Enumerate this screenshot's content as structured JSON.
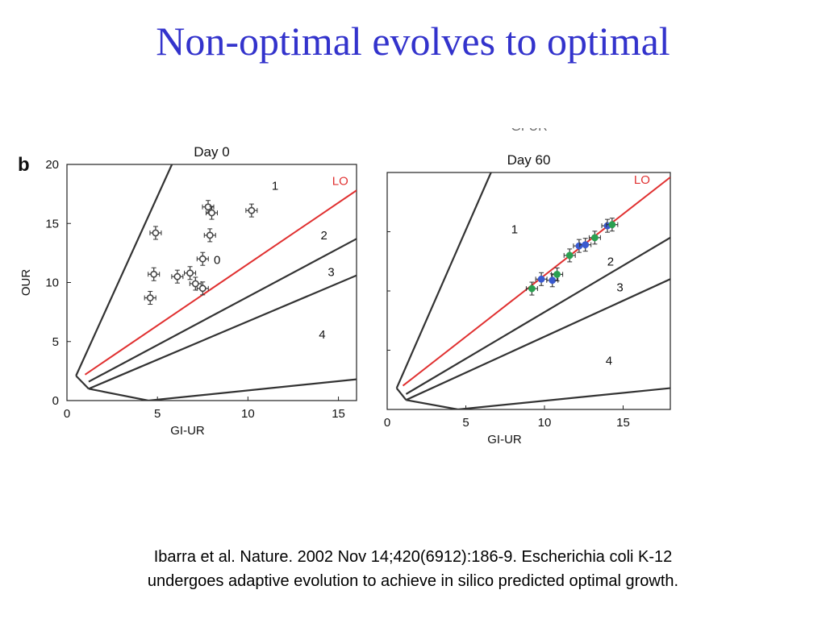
{
  "slide": {
    "title": "Non-optimal evolves to optimal",
    "citation_line1": "Ibarra et al.  Nature. 2002 Nov 14;420(6912):186-9. Escherichia coli K-12",
    "citation_line2": "undergoes adaptive evolution to achieve in silico predicted optimal growth."
  },
  "figure": {
    "panel_letter": "b",
    "clipped_header": "GI-UR"
  },
  "colors": {
    "title": "#3333cc",
    "lo_line": "#e03030",
    "boundary_lines": "#333333",
    "points_day0": "#444444",
    "points_day60_blue": "#3a5ad0",
    "points_day60_green": "#2aa050"
  },
  "chart_data": [
    {
      "type": "scatter",
      "title": "Day 0",
      "xlabel": "GI-UR",
      "ylabel": "OUR",
      "xlim": [
        0,
        16
      ],
      "ylim": [
        0,
        20
      ],
      "xticks": [
        0,
        5,
        10,
        15
      ],
      "yticks": [
        0,
        5,
        10,
        15,
        20
      ],
      "grid": false,
      "points": [
        {
          "x": 4.6,
          "y": 8.7
        },
        {
          "x": 4.8,
          "y": 10.7
        },
        {
          "x": 4.9,
          "y": 14.2
        },
        {
          "x": 6.1,
          "y": 10.5
        },
        {
          "x": 6.8,
          "y": 10.8
        },
        {
          "x": 7.1,
          "y": 9.9
        },
        {
          "x": 7.5,
          "y": 9.5
        },
        {
          "x": 7.5,
          "y": 12.0
        },
        {
          "x": 7.9,
          "y": 14.0
        },
        {
          "x": 7.8,
          "y": 16.4
        },
        {
          "x": 8.0,
          "y": 15.9
        },
        {
          "x": 10.2,
          "y": 16.1
        }
      ],
      "lines": [
        {
          "name": "LO",
          "points": [
            [
              1.0,
              2.2
            ],
            [
              16.0,
              17.8
            ]
          ]
        },
        {
          "points": [
            [
              1.2,
              1.6
            ],
            [
              16.0,
              13.7
            ]
          ]
        },
        {
          "points": [
            [
              1.2,
              1.0
            ],
            [
              16.0,
              10.6
            ]
          ]
        },
        {
          "points": [
            [
              4.5,
              0.0
            ],
            [
              16.0,
              1.8
            ]
          ]
        },
        {
          "points": [
            [
              0.5,
              2.1
            ],
            [
              5.8,
              20.0
            ]
          ]
        },
        {
          "points": [
            [
              0.5,
              2.1
            ],
            [
              1.2,
              1.0
            ]
          ]
        },
        {
          "points": [
            [
              1.2,
              1.0
            ],
            [
              4.5,
              0.0
            ]
          ]
        }
      ],
      "region_labels": [
        {
          "text": "1",
          "x": 11.5,
          "y": 18.2
        },
        {
          "text": "2",
          "x": 14.2,
          "y": 14.0
        },
        {
          "text": "3",
          "x": 14.6,
          "y": 10.9
        },
        {
          "text": "4",
          "x": 14.1,
          "y": 5.6
        },
        {
          "text": "0",
          "x": 8.3,
          "y": 11.9
        }
      ],
      "annotations": [
        {
          "text": "LO",
          "x": 15.1,
          "y": 18.6
        }
      ]
    },
    {
      "type": "scatter",
      "title": "Day 60",
      "xlabel": "GI-UR",
      "ylabel": "",
      "xlim": [
        0,
        18
      ],
      "ylim": [
        0,
        20
      ],
      "xticks": [
        0,
        5,
        10,
        15
      ],
      "yticks": [],
      "grid": false,
      "points": [
        {
          "x": 9.2,
          "y": 10.2,
          "color": "green"
        },
        {
          "x": 9.8,
          "y": 11.0,
          "color": "blue"
        },
        {
          "x": 10.5,
          "y": 10.9,
          "color": "blue"
        },
        {
          "x": 10.8,
          "y": 11.4,
          "color": "green"
        },
        {
          "x": 11.6,
          "y": 13.0,
          "color": "green"
        },
        {
          "x": 12.2,
          "y": 13.8,
          "color": "blue"
        },
        {
          "x": 12.6,
          "y": 13.9,
          "color": "blue"
        },
        {
          "x": 13.2,
          "y": 14.5,
          "color": "green"
        },
        {
          "x": 14.0,
          "y": 15.5,
          "color": "blue"
        },
        {
          "x": 14.3,
          "y": 15.6,
          "color": "green"
        }
      ],
      "lines": [
        {
          "name": "LO",
          "points": [
            [
              1.0,
              2.0
            ],
            [
              18.0,
              19.6
            ]
          ]
        },
        {
          "points": [
            [
              1.2,
              1.3
            ],
            [
              18.0,
              14.5
            ]
          ]
        },
        {
          "points": [
            [
              1.2,
              0.8
            ],
            [
              18.0,
              11.0
            ]
          ]
        },
        {
          "points": [
            [
              4.5,
              0.0
            ],
            [
              18.0,
              1.8
            ]
          ]
        },
        {
          "points": [
            [
              0.6,
              1.8
            ],
            [
              6.6,
              20.0
            ]
          ]
        },
        {
          "points": [
            [
              0.6,
              1.8
            ],
            [
              1.2,
              0.8
            ]
          ]
        },
        {
          "points": [
            [
              1.2,
              0.8
            ],
            [
              4.5,
              0.0
            ]
          ]
        }
      ],
      "region_labels": [
        {
          "text": "1",
          "x": 8.1,
          "y": 15.2
        },
        {
          "text": "2",
          "x": 14.2,
          "y": 12.5
        },
        {
          "text": "3",
          "x": 14.8,
          "y": 10.3
        },
        {
          "text": "4",
          "x": 14.1,
          "y": 4.1
        }
      ],
      "annotations": [
        {
          "text": "LO",
          "x": 16.2,
          "y": 19.4
        }
      ]
    }
  ]
}
